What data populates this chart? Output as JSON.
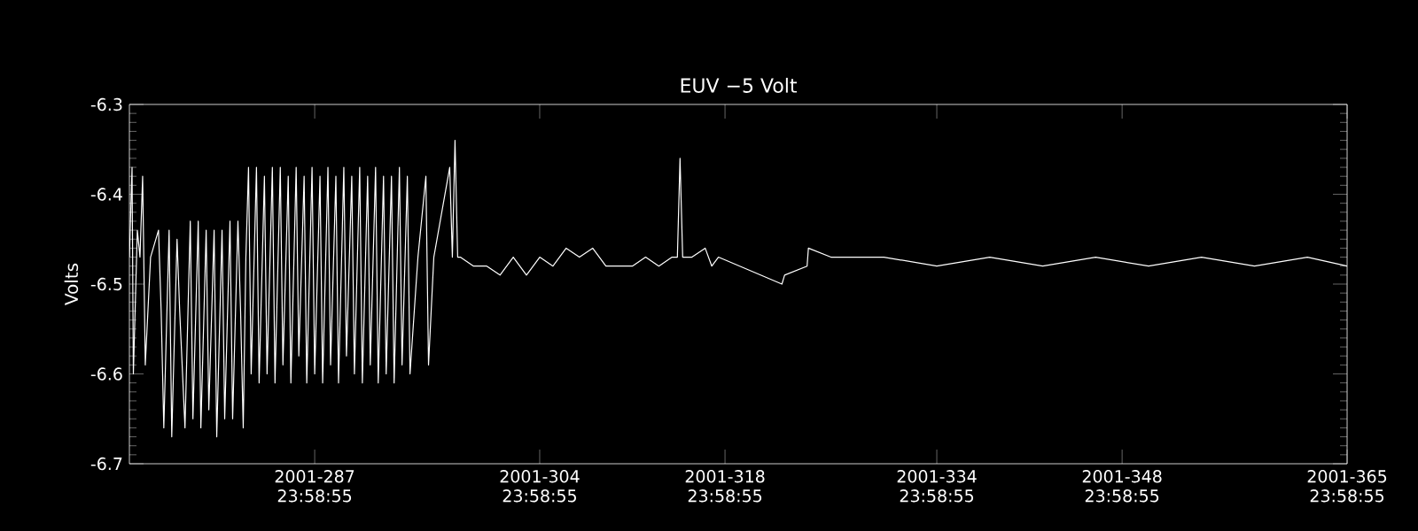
{
  "chart_data": {
    "type": "line",
    "title": "EUV −5 Volt",
    "ylabel": "Volts",
    "xlim": [
      "2001-10-01T00:00",
      "2001-12-31T23:58:55"
    ],
    "ylim": [
      -6.7,
      -6.3
    ],
    "xticks": [
      {
        "value": "2001-10-14T23:58:55",
        "label": "2001-287 23:58:55"
      },
      {
        "value": "2001-10-31T23:58:55",
        "label": "2001-304 23:58:55"
      },
      {
        "value": "2001-11-14T23:58:55",
        "label": "2001-318 23:58:55"
      },
      {
        "value": "2001-11-30T23:58:55",
        "label": "2001-334 23:58:55"
      },
      {
        "value": "2001-12-14T23:58:55",
        "label": "2001-348 23:58:55"
      },
      {
        "value": "2001-12-31T23:58:55",
        "label": "2001-365 23:58:55"
      }
    ],
    "yticks": [
      -6.7,
      -6.6,
      -6.5,
      -6.4,
      -6.3
    ],
    "line_style": "solid",
    "series": [
      {
        "color": "#ffffff",
        "x": [
          "2001-10-01T00:00",
          "2001-10-01T04:48",
          "2001-10-01T07:12",
          "2001-10-01T14:24",
          "2001-10-01T19:12",
          "2001-10-02T00:00",
          "2001-10-02T04:48",
          "2001-10-02T14:24",
          "2001-10-03T04:48",
          "2001-10-03T09:36",
          "2001-10-03T14:24",
          "2001-10-04T00:00",
          "2001-10-04T04:48",
          "2001-10-04T14:24",
          "2001-10-04T19:12",
          "2001-10-05T04:48",
          "2001-10-05T14:24",
          "2001-10-05T19:12",
          "2001-10-06T04:48",
          "2001-10-06T09:36",
          "2001-10-06T19:12",
          "2001-10-07T00:00",
          "2001-10-07T09:36",
          "2001-10-07T14:24",
          "2001-10-08T00:00",
          "2001-10-08T04:48",
          "2001-10-08T14:24",
          "2001-10-08T19:12",
          "2001-10-09T04:48",
          "2001-10-09T09:36",
          "2001-10-09T14:24",
          "2001-10-09T19:12",
          "2001-10-10T00:00",
          "2001-10-10T04:48",
          "2001-10-10T14:24",
          "2001-10-10T19:12",
          "2001-10-11T04:48",
          "2001-10-11T09:36",
          "2001-10-11T19:12",
          "2001-10-12T00:00",
          "2001-10-12T09:36",
          "2001-10-12T14:24",
          "2001-10-13T00:00",
          "2001-10-13T04:48",
          "2001-10-13T14:24",
          "2001-10-13T19:12",
          "2001-10-14T04:48",
          "2001-10-14T09:36",
          "2001-10-14T19:12",
          "2001-10-15T00:00",
          "2001-10-15T09:36",
          "2001-10-15T14:24",
          "2001-10-16T00:00",
          "2001-10-16T04:48",
          "2001-10-16T14:24",
          "2001-10-16T19:12",
          "2001-10-17T04:48",
          "2001-10-17T09:36",
          "2001-10-17T19:12",
          "2001-10-18T00:00",
          "2001-10-18T09:36",
          "2001-10-18T14:24",
          "2001-10-19T00:00",
          "2001-10-19T04:48",
          "2001-10-19T14:24",
          "2001-10-19T19:12",
          "2001-10-20T04:48",
          "2001-10-20T09:36",
          "2001-10-20T19:12",
          "2001-10-21T00:00",
          "2001-10-21T09:36",
          "2001-10-21T14:24",
          "2001-10-22T00:00",
          "2001-10-22T04:48",
          "2001-10-22T19:12",
          "2001-10-23T09:36",
          "2001-10-23T14:24",
          "2001-10-24T00:00",
          "2001-10-25T04:48",
          "2001-10-25T09:36",
          "2001-10-25T14:24",
          "2001-10-25T19:12",
          "2001-10-26T00:00",
          "2001-10-27T00:00",
          "2001-10-28T00:00",
          "2001-10-29T00:00",
          "2001-10-30T00:00",
          "2001-10-31T00:00",
          "2001-11-01T00:00",
          "2001-11-02T00:00",
          "2001-11-03T00:00",
          "2001-11-04T00:00",
          "2001-11-05T00:00",
          "2001-11-06T00:00",
          "2001-11-07T00:00",
          "2001-11-08T00:00",
          "2001-11-09T00:00",
          "2001-11-10T00:00",
          "2001-11-11T00:00",
          "2001-11-11T09:36",
          "2001-11-11T14:24",
          "2001-11-11T19:12",
          "2001-11-12T12:00",
          "2001-11-13T12:00",
          "2001-11-14T00:00",
          "2001-11-14T12:00",
          "2001-11-19T07:12",
          "2001-11-19T12:00",
          "2001-11-21T04:48",
          "2001-11-21T07:12",
          "2001-11-23T00:00",
          "2001-11-27T00:00",
          "2001-12-01T00:00",
          "2001-12-05T00:00",
          "2001-12-09T00:00",
          "2001-12-13T00:00",
          "2001-12-17T00:00",
          "2001-12-21T00:00",
          "2001-12-25T00:00",
          "2001-12-29T00:00",
          "2001-12-31T23:58:55"
        ],
        "values": [
          -6.47,
          -6.37,
          -6.6,
          -6.44,
          -6.47,
          -6.38,
          -6.59,
          -6.47,
          -6.44,
          -6.53,
          -6.66,
          -6.44,
          -6.67,
          -6.45,
          -6.53,
          -6.66,
          -6.43,
          -6.65,
          -6.43,
          -6.66,
          -6.44,
          -6.64,
          -6.44,
          -6.67,
          -6.44,
          -6.65,
          -6.43,
          -6.65,
          -6.43,
          -6.53,
          -6.66,
          -6.47,
          -6.37,
          -6.6,
          -6.37,
          -6.61,
          -6.38,
          -6.6,
          -6.37,
          -6.61,
          -6.37,
          -6.59,
          -6.38,
          -6.61,
          -6.37,
          -6.58,
          -6.38,
          -6.61,
          -6.37,
          -6.6,
          -6.38,
          -6.61,
          -6.37,
          -6.59,
          -6.38,
          -6.61,
          -6.37,
          -6.58,
          -6.38,
          -6.6,
          -6.37,
          -6.61,
          -6.38,
          -6.59,
          -6.37,
          -6.61,
          -6.38,
          -6.6,
          -6.38,
          -6.61,
          -6.37,
          -6.59,
          -6.38,
          -6.6,
          -6.47,
          -6.38,
          -6.59,
          -6.47,
          -6.37,
          -6.47,
          -6.34,
          -6.47,
          -6.47,
          -6.48,
          -6.48,
          -6.49,
          -6.47,
          -6.49,
          -6.47,
          -6.48,
          -6.46,
          -6.47,
          -6.46,
          -6.48,
          -6.48,
          -6.48,
          -6.47,
          -6.48,
          -6.47,
          -6.47,
          -6.36,
          -6.47,
          -6.47,
          -6.46,
          -6.48,
          -6.47,
          -6.5,
          -6.49,
          -6.48,
          -6.46,
          -6.47,
          -6.47,
          -6.48,
          -6.47,
          -6.48,
          -6.47,
          -6.48,
          -6.47,
          -6.48,
          -6.47,
          -6.48
        ]
      }
    ]
  }
}
